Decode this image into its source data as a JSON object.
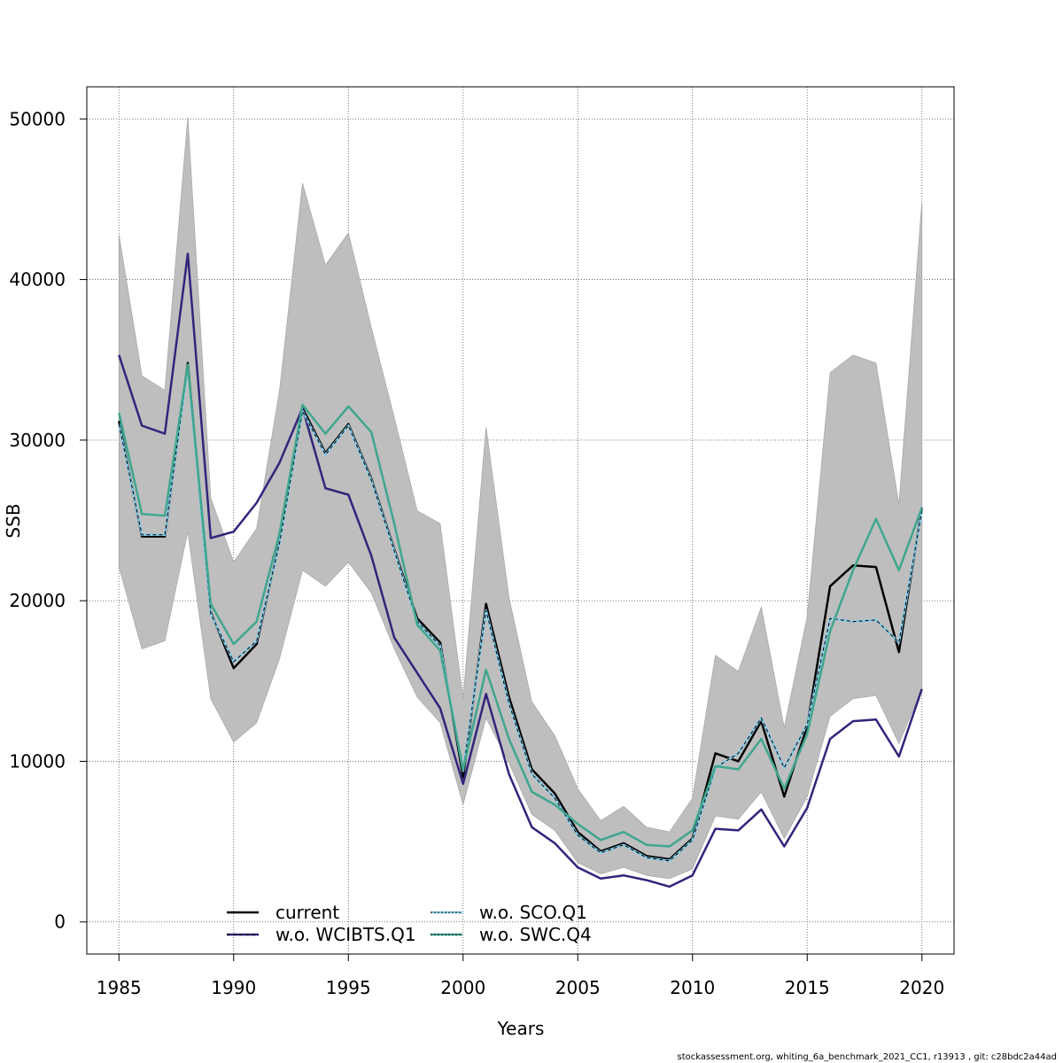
{
  "chart_data": {
    "type": "line",
    "title": "",
    "xlabel": "Years",
    "ylabel": "SSB",
    "xlim": [
      1983.6,
      2021.4
    ],
    "ylim": [
      -2000,
      52000
    ],
    "x_ticks": [
      1985,
      1990,
      1995,
      2000,
      2005,
      2010,
      2015,
      2020
    ],
    "y_ticks": [
      0,
      10000,
      20000,
      30000,
      40000,
      50000
    ],
    "x_tick_labels": [
      "1985",
      "1990",
      "1995",
      "2000",
      "2005",
      "2010",
      "2015",
      "2020"
    ],
    "y_tick_labels": [
      "0",
      "10000",
      "20000",
      "30000",
      "40000",
      "50000"
    ],
    "grid": true,
    "legend_position": "bottom",
    "x": [
      1985,
      1986,
      1987,
      1988,
      1989,
      1990,
      1991,
      1992,
      1993,
      1994,
      1995,
      1996,
      1997,
      1998,
      1999,
      2000,
      2001,
      2002,
      2003,
      2004,
      2005,
      2006,
      2007,
      2008,
      2009,
      2010,
      2011,
      2012,
      2013,
      2014,
      2015,
      2016,
      2017,
      2018,
      2019,
      2020
    ],
    "confidence_band": {
      "color": "#bebebe",
      "upper": [
        42800,
        34000,
        33100,
        50100,
        26400,
        22400,
        24500,
        33100,
        46000,
        40900,
        42900,
        37000,
        31400,
        25600,
        24800,
        13900,
        30800,
        20200,
        13700,
        11600,
        8300,
        6300,
        7200,
        5900,
        5600,
        7700,
        16600,
        15600,
        19600,
        12100,
        19000,
        34200,
        35300,
        34800,
        26000,
        44800
      ],
      "lower": [
        22100,
        17000,
        17500,
        24300,
        13900,
        11200,
        12400,
        16400,
        21900,
        20900,
        22400,
        20500,
        17000,
        14000,
        12400,
        7300,
        12700,
        9900,
        6700,
        5700,
        3700,
        3000,
        3400,
        2900,
        2700,
        3300,
        6600,
        6400,
        8100,
        5200,
        7800,
        12800,
        13900,
        14100,
        11100,
        14500
      ]
    },
    "series": [
      {
        "name": "current",
        "color": "#000000",
        "dash": "",
        "values": [
          31200,
          24000,
          24000,
          34800,
          19300,
          15800,
          17300,
          23700,
          32000,
          29200,
          31000,
          27600,
          23200,
          18900,
          17400,
          9000,
          19800,
          14000,
          9500,
          8000,
          5600,
          4400,
          4900,
          4100,
          3900,
          5200,
          10500,
          10000,
          12500,
          7800,
          12200,
          20900,
          22200,
          22100,
          16800,
          25800
        ]
      },
      {
        "name": "w.o. WCIBTS.Q1",
        "color": "#31257c",
        "dash": "",
        "values": [
          35300,
          30900,
          30400,
          41600,
          23900,
          24300,
          26100,
          28600,
          32000,
          27000,
          26600,
          22800,
          17700,
          15500,
          13300,
          8600,
          14200,
          9200,
          5900,
          4900,
          3400,
          2700,
          2900,
          2600,
          2200,
          2900,
          5800,
          5700,
          7000,
          4700,
          7100,
          11400,
          12500,
          12600,
          10300,
          14500
        ]
      },
      {
        "name": "w.o. SCO.Q1",
        "color": "#87ceeb",
        "dash": "4,3",
        "values": [
          31000,
          24100,
          24100,
          34600,
          19200,
          16200,
          17500,
          23600,
          31800,
          29100,
          30900,
          27500,
          23100,
          18700,
          17200,
          9400,
          19400,
          13600,
          9200,
          7700,
          5400,
          4300,
          4800,
          4000,
          3800,
          5100,
          9600,
          10500,
          12700,
          9600,
          12300,
          18900,
          18700,
          18800,
          17400,
          25600
        ]
      },
      {
        "name": "w.o. SWC.Q4",
        "color": "#3fa68f",
        "dash": "",
        "values": [
          31700,
          25400,
          25300,
          34700,
          19800,
          17300,
          18700,
          24200,
          32200,
          30400,
          32100,
          30500,
          24800,
          18500,
          16900,
          9500,
          15700,
          11400,
          8100,
          7300,
          6100,
          5100,
          5600,
          4800,
          4700,
          5700,
          9700,
          9500,
          11400,
          8300,
          11700,
          18100,
          21900,
          25100,
          21900,
          25800
        ]
      }
    ]
  },
  "legend": {
    "items": [
      "current",
      "w.o. WCIBTS.Q1",
      "w.o. SCO.Q1",
      "w.o. SWC.Q4"
    ]
  },
  "footer": {
    "text": "stockassessment.org, whiting_6a_benchmark_2021_CC1, r13913 , git: c28bdc2a44ad"
  }
}
